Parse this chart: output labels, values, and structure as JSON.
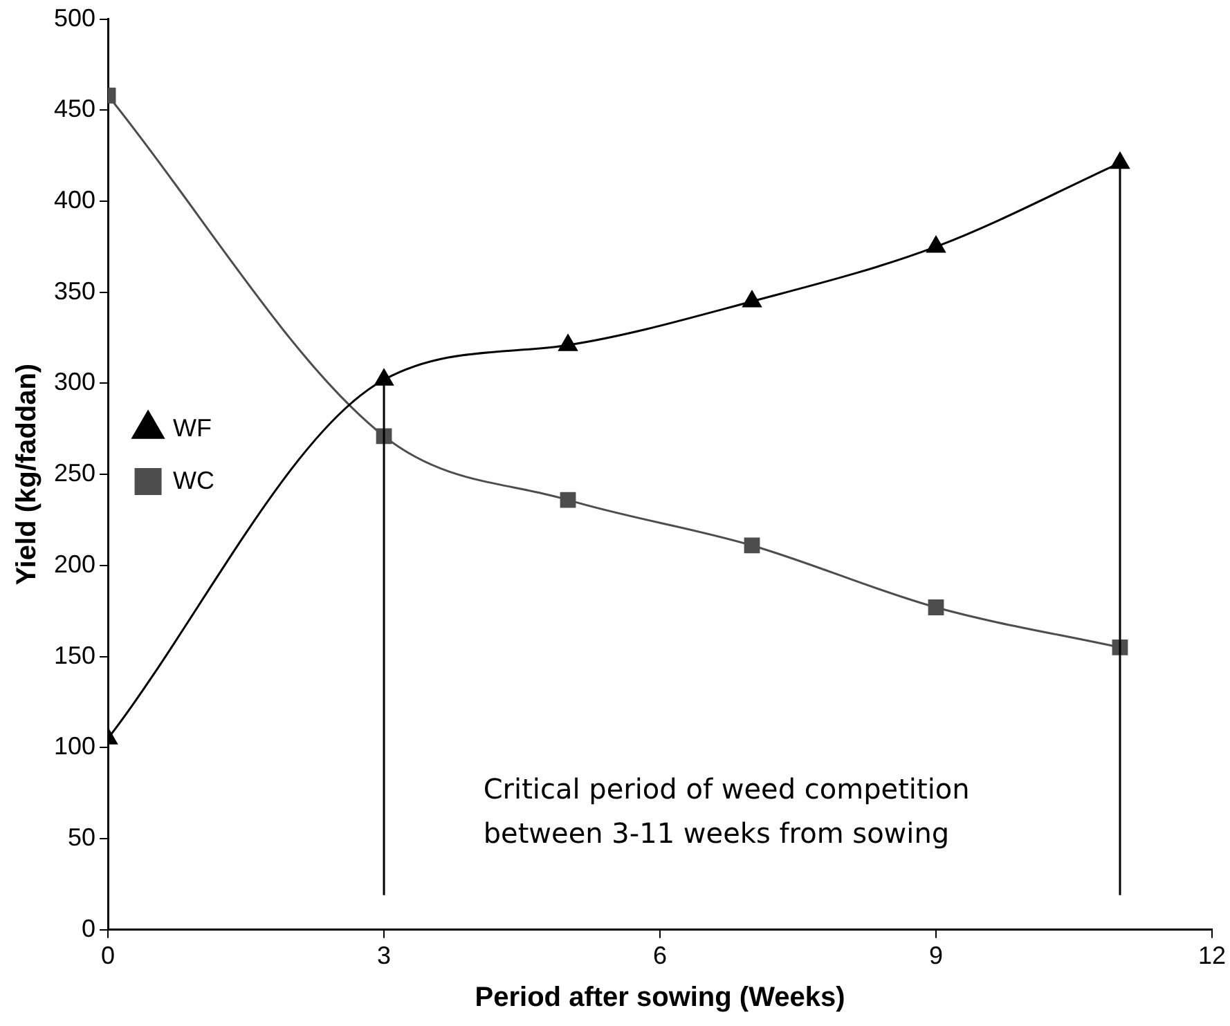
{
  "chart_data": {
    "type": "line",
    "xlabel": "Period after sowing (Weeks)",
    "ylabel": "Yield (kg/faddan)",
    "x": [
      0,
      3,
      5,
      7,
      9,
      11
    ],
    "series": [
      {
        "name": "WF",
        "color": "#000000",
        "marker": "triangle",
        "values": [
          105,
          302,
          321,
          345,
          375,
          421
        ]
      },
      {
        "name": "WC",
        "color": "#4d4d4d",
        "marker": "square",
        "values": [
          458,
          271,
          236,
          211,
          177,
          155
        ]
      }
    ],
    "xlim": [
      0,
      12
    ],
    "xticks": [
      0,
      3,
      6,
      9,
      12
    ],
    "ylim": [
      0,
      500
    ],
    "yticks": [
      0,
      50,
      100,
      150,
      200,
      250,
      300,
      350,
      400,
      450,
      500
    ],
    "grid": false,
    "legend": "top",
    "ref_lines": [
      {
        "axis": "x",
        "value": 3,
        "color": "#000000"
      },
      {
        "axis": "x",
        "value": 11,
        "color": "#000000"
      }
    ],
    "annotations": [
      "Critical period of weed competition\nbetween 3-11 weeks from sowing"
    ]
  }
}
